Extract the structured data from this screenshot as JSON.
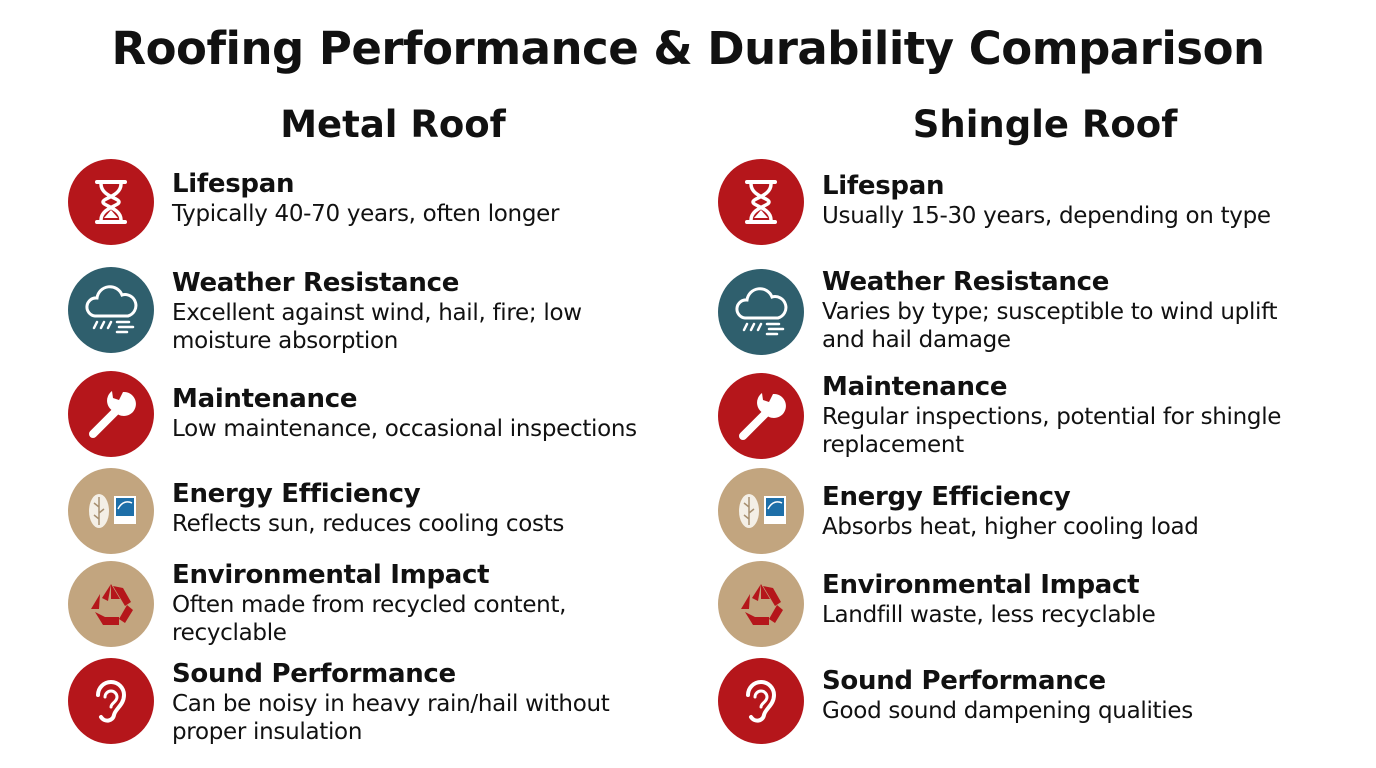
{
  "title": "Roofing Performance & Durability Comparison",
  "columns": [
    {
      "heading": "Metal Roof",
      "items": [
        {
          "title": "Lifespan",
          "text": "Typically 40-70 years, often longer"
        },
        {
          "title": "Weather Resistance",
          "text": "Excellent against wind, hail, fire; low moisture absorption"
        },
        {
          "title": "Maintenance",
          "text": "Low maintenance, occasional inspections"
        },
        {
          "title": "Energy Efficiency",
          "text": "Reflects sun, reduces cooling costs"
        },
        {
          "title": "Environmental Impact",
          "text": "Often made from recycled content, recyclable"
        },
        {
          "title": "Sound Performance",
          "text": "Can be noisy in heavy rain/hail without proper insulation"
        }
      ]
    },
    {
      "heading": "Shingle Roof",
      "items": [
        {
          "title": "Lifespan",
          "text": "Usually 15-30 years, depending on type"
        },
        {
          "title": "Weather Resistance",
          "text": "Varies by type; susceptible to wind uplift and hail damage"
        },
        {
          "title": "Maintenance",
          "text": "Regular inspections, potential for shingle replacement"
        },
        {
          "title": "Energy Efficiency",
          "text": "Absorbs heat, higher cooling load"
        },
        {
          "title": "Environmental Impact",
          "text": "Landfill waste, less recyclable"
        },
        {
          "title": "Sound Performance",
          "text": "Good sound dampening qualities"
        }
      ]
    }
  ]
}
